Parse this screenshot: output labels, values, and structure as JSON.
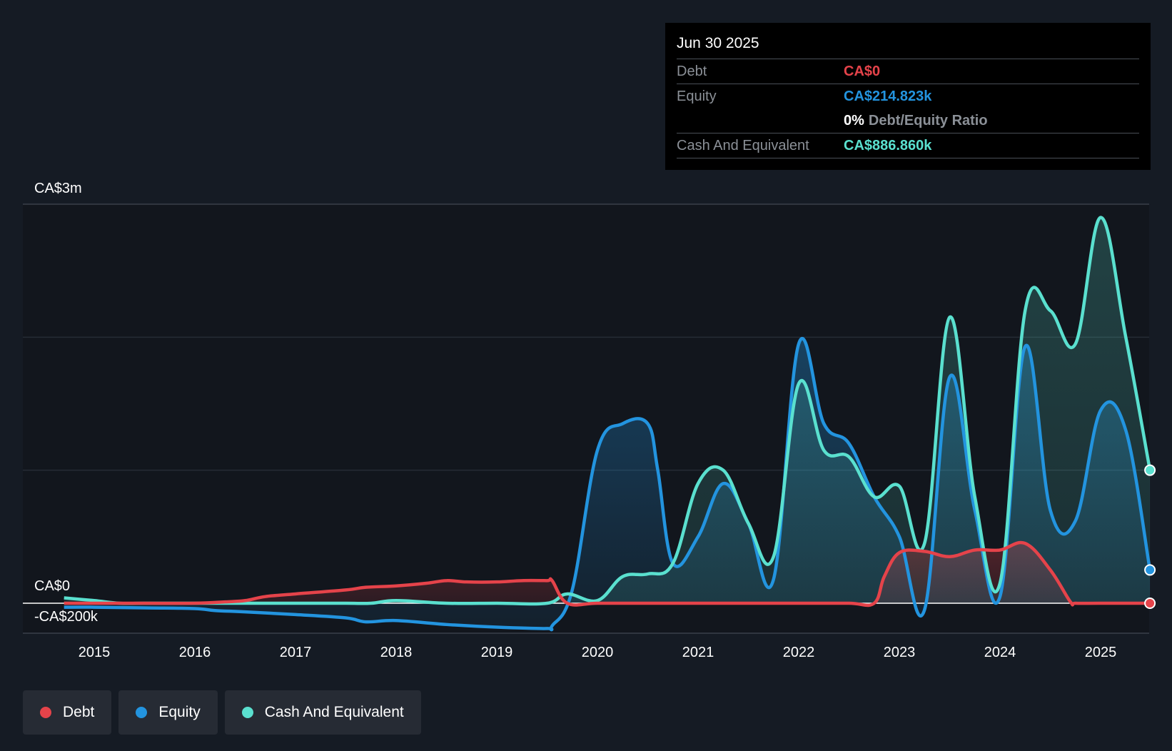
{
  "chart_data": {
    "type": "area",
    "y_axis_labels": {
      "top": "CA$3m",
      "zero": "CA$0",
      "bottom": "-CA$200k"
    },
    "ylim": [
      -240000,
      3000000
    ],
    "x_ticks": [
      "2015",
      "2016",
      "2017",
      "2018",
      "2019",
      "2020",
      "2021",
      "2022",
      "2023",
      "2024",
      "2025"
    ],
    "grid": true,
    "legend_position": "bottom-left",
    "series": [
      {
        "name": "Debt",
        "color": "#e5434a",
        "x": [
          2014.7,
          2015.0,
          2015.5,
          2016.0,
          2016.3,
          2016.5,
          2016.7,
          2017.0,
          2017.5,
          2017.7,
          2018.0,
          2018.3,
          2018.5,
          2018.7,
          2019.0,
          2019.25,
          2019.5,
          2019.55,
          2019.7,
          2020.0,
          2020.5,
          2021.0,
          2021.5,
          2022.0,
          2022.5,
          2022.75,
          2022.85,
          2023.0,
          2023.25,
          2023.5,
          2023.75,
          2024.0,
          2024.25,
          2024.5,
          2024.7,
          2024.75,
          2025.0,
          2025.49
        ],
        "y": [
          0,
          0,
          0,
          0,
          10000,
          20000,
          50000,
          70000,
          100000,
          120000,
          130000,
          150000,
          170000,
          160000,
          160000,
          170000,
          170000,
          170000,
          0,
          0,
          0,
          0,
          0,
          0,
          0,
          0,
          200000,
          380000,
          390000,
          350000,
          400000,
          400000,
          450000,
          250000,
          10000,
          0,
          0,
          0
        ]
      },
      {
        "name": "Equity",
        "color": "#2394df",
        "x": [
          2014.7,
          2015.0,
          2015.5,
          2016.0,
          2016.2,
          2016.5,
          2017.0,
          2017.5,
          2017.7,
          2018.0,
          2018.5,
          2019.0,
          2019.5,
          2019.55,
          2019.75,
          2020.0,
          2020.25,
          2020.5,
          2020.6,
          2020.75,
          2021.0,
          2021.25,
          2021.5,
          2021.75,
          2022.0,
          2022.25,
          2022.5,
          2022.75,
          2023.0,
          2023.25,
          2023.5,
          2023.75,
          2024.0,
          2024.25,
          2024.5,
          2024.75,
          2025.0,
          2025.25,
          2025.49
        ],
        "y": [
          -30000,
          -30000,
          -35000,
          -40000,
          -55000,
          -65000,
          -85000,
          -110000,
          -140000,
          -130000,
          -160000,
          -180000,
          -190000,
          -170000,
          100000,
          1150000,
          1350000,
          1350000,
          1000000,
          300000,
          500000,
          900000,
          600000,
          180000,
          1950000,
          1350000,
          1200000,
          800000,
          500000,
          -50000,
          1700000,
          700000,
          50000,
          1930000,
          700000,
          620000,
          1450000,
          1300000,
          250000
        ]
      },
      {
        "name": "Cash And Equivalent",
        "color": "#5ae0cf",
        "x": [
          2014.7,
          2015.0,
          2015.25,
          2015.5,
          2016.0,
          2016.5,
          2017.0,
          2017.5,
          2017.75,
          2018.0,
          2018.5,
          2019.0,
          2019.5,
          2019.7,
          2020.0,
          2020.25,
          2020.5,
          2020.75,
          2021.0,
          2021.25,
          2021.5,
          2021.75,
          2022.0,
          2022.25,
          2022.5,
          2022.75,
          2023.0,
          2023.25,
          2023.5,
          2023.75,
          2024.0,
          2024.25,
          2024.5,
          2024.75,
          2025.0,
          2025.25,
          2025.49
        ],
        "y": [
          40000,
          20000,
          0,
          0,
          0,
          0,
          0,
          0,
          0,
          20000,
          0,
          0,
          0,
          70000,
          20000,
          200000,
          220000,
          300000,
          900000,
          1000000,
          600000,
          350000,
          1650000,
          1150000,
          1100000,
          800000,
          880000,
          450000,
          2150000,
          800000,
          150000,
          2200000,
          2200000,
          1950000,
          2900000,
          2000000,
          1000000
        ]
      }
    ]
  },
  "tooltip": {
    "date": "Jun 30 2025",
    "debt_label": "Debt",
    "debt_value": "CA$0",
    "equity_label": "Equity",
    "equity_value": "CA$214.823k",
    "ratio_value": "0%",
    "ratio_label": "Debt/Equity Ratio",
    "cash_label": "Cash And Equivalent",
    "cash_value": "CA$886.860k"
  },
  "legend": [
    {
      "label": "Debt",
      "color": "#e5434a"
    },
    {
      "label": "Equity",
      "color": "#2394df"
    },
    {
      "label": "Cash And Equivalent",
      "color": "#5ae0cf"
    }
  ]
}
